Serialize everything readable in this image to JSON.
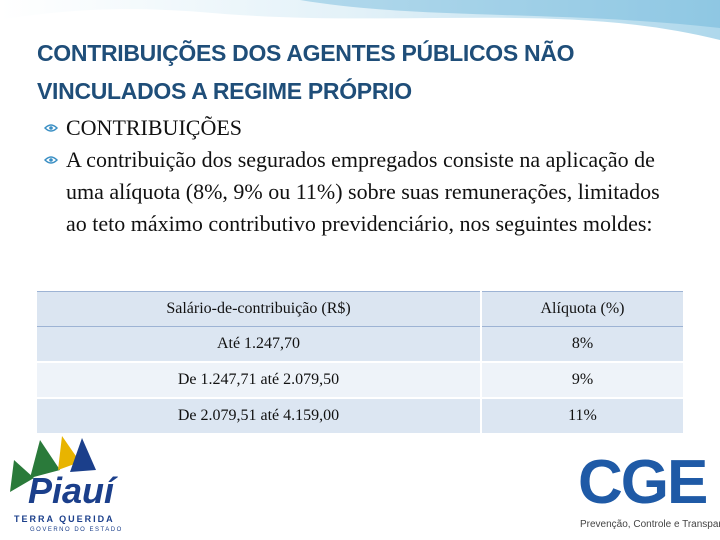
{
  "slide": {
    "title_lines": [
      "CONTRIBUIÇÕES DOS AGENTES PÚBLICOS NÃO",
      "VINCULADOS A REGIME PRÓPRIO"
    ],
    "bullets": [
      "CONTRIBUIÇÕES",
      "A contribuição dos segurados empregados  consiste na aplicação de uma alíquota (8%, 9% ou 11%) sobre suas remunerações, limitados ao teto máximo contributivo previdenciário, nos seguintes moldes:"
    ]
  },
  "table": {
    "header": [
      "Salário-de-contribuição (R$)",
      "Alíquota (%)"
    ],
    "rows": [
      [
        "Até 1.247,70",
        "8%"
      ],
      [
        "De 1.247,71  até  2.079,50",
        "9%"
      ],
      [
        "De 2.079,51  até  4.159,00",
        "11%"
      ]
    ]
  },
  "logos": {
    "piaui": {
      "name": "Piauí",
      "tagline": "TERRA QUERIDA",
      "sub": "GOVERNO DO ESTADO"
    },
    "cge": {
      "name": "CGE",
      "tagline": "Prevenção, Controle e Transparência"
    }
  }
}
